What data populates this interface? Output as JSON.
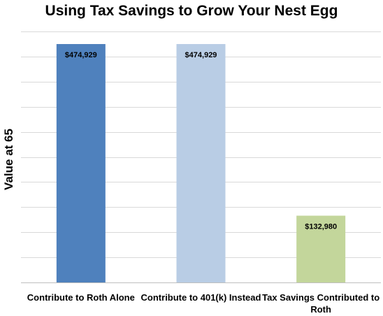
{
  "chart_data": {
    "type": "bar",
    "title": "Using Tax Savings to Grow Your Nest Egg",
    "ylabel": "Value at 65",
    "xlabel": "",
    "categories": [
      "Contribute to Roth Alone",
      "Contribute to 401(k) Instead",
      "Tax Savings Contributed to Roth"
    ],
    "values": [
      474929,
      474929,
      132980
    ],
    "data_labels": [
      "$474,929",
      "$474,929",
      "$132,980"
    ],
    "bar_colors": [
      "#4F81BD",
      "#B9CDE5",
      "#C3D69B"
    ],
    "ylim": [
      0,
      500000
    ],
    "grid": true,
    "legend": "none"
  }
}
